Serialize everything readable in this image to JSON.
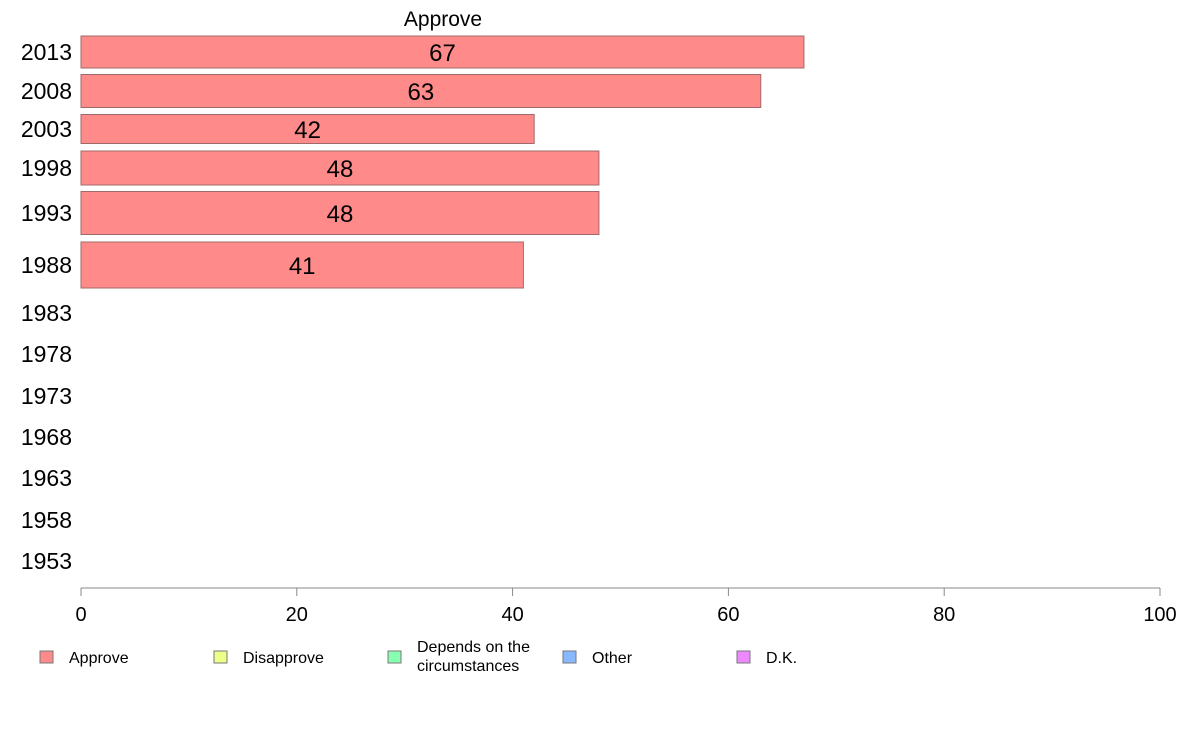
{
  "chart_data": {
    "type": "bar",
    "orientation": "horizontal",
    "title": "Approve",
    "categories": [
      "2013",
      "2008",
      "2003",
      "1998",
      "1993",
      "1988",
      "1983",
      "1978",
      "1973",
      "1968",
      "1963",
      "1958",
      "1953"
    ],
    "series": [
      {
        "name": "Approve",
        "color": "#ff8a8a",
        "values": [
          67,
          63,
          42,
          48,
          48,
          41,
          null,
          null,
          null,
          null,
          null,
          null,
          null
        ],
        "labels": [
          "67",
          "63",
          "42",
          "48",
          "48",
          "41",
          "",
          "",
          "",
          "",
          "",
          "",
          ""
        ]
      }
    ],
    "xlim": [
      0,
      100
    ],
    "xticks": [
      "0",
      "20",
      "40",
      "60",
      "80",
      "100"
    ],
    "grid": false,
    "legend": {
      "placement": "bottom",
      "entries": [
        {
          "label": "Approve",
          "color": "#ff8a8a"
        },
        {
          "label": "Disapprove",
          "color": "#eeff88"
        },
        {
          "label": "Depends on the circumstances",
          "color": "#88ffb0"
        },
        {
          "label": "Other",
          "color": "#88b8ff"
        },
        {
          "label": "D.K.",
          "color": "#ee88ff"
        }
      ]
    }
  }
}
